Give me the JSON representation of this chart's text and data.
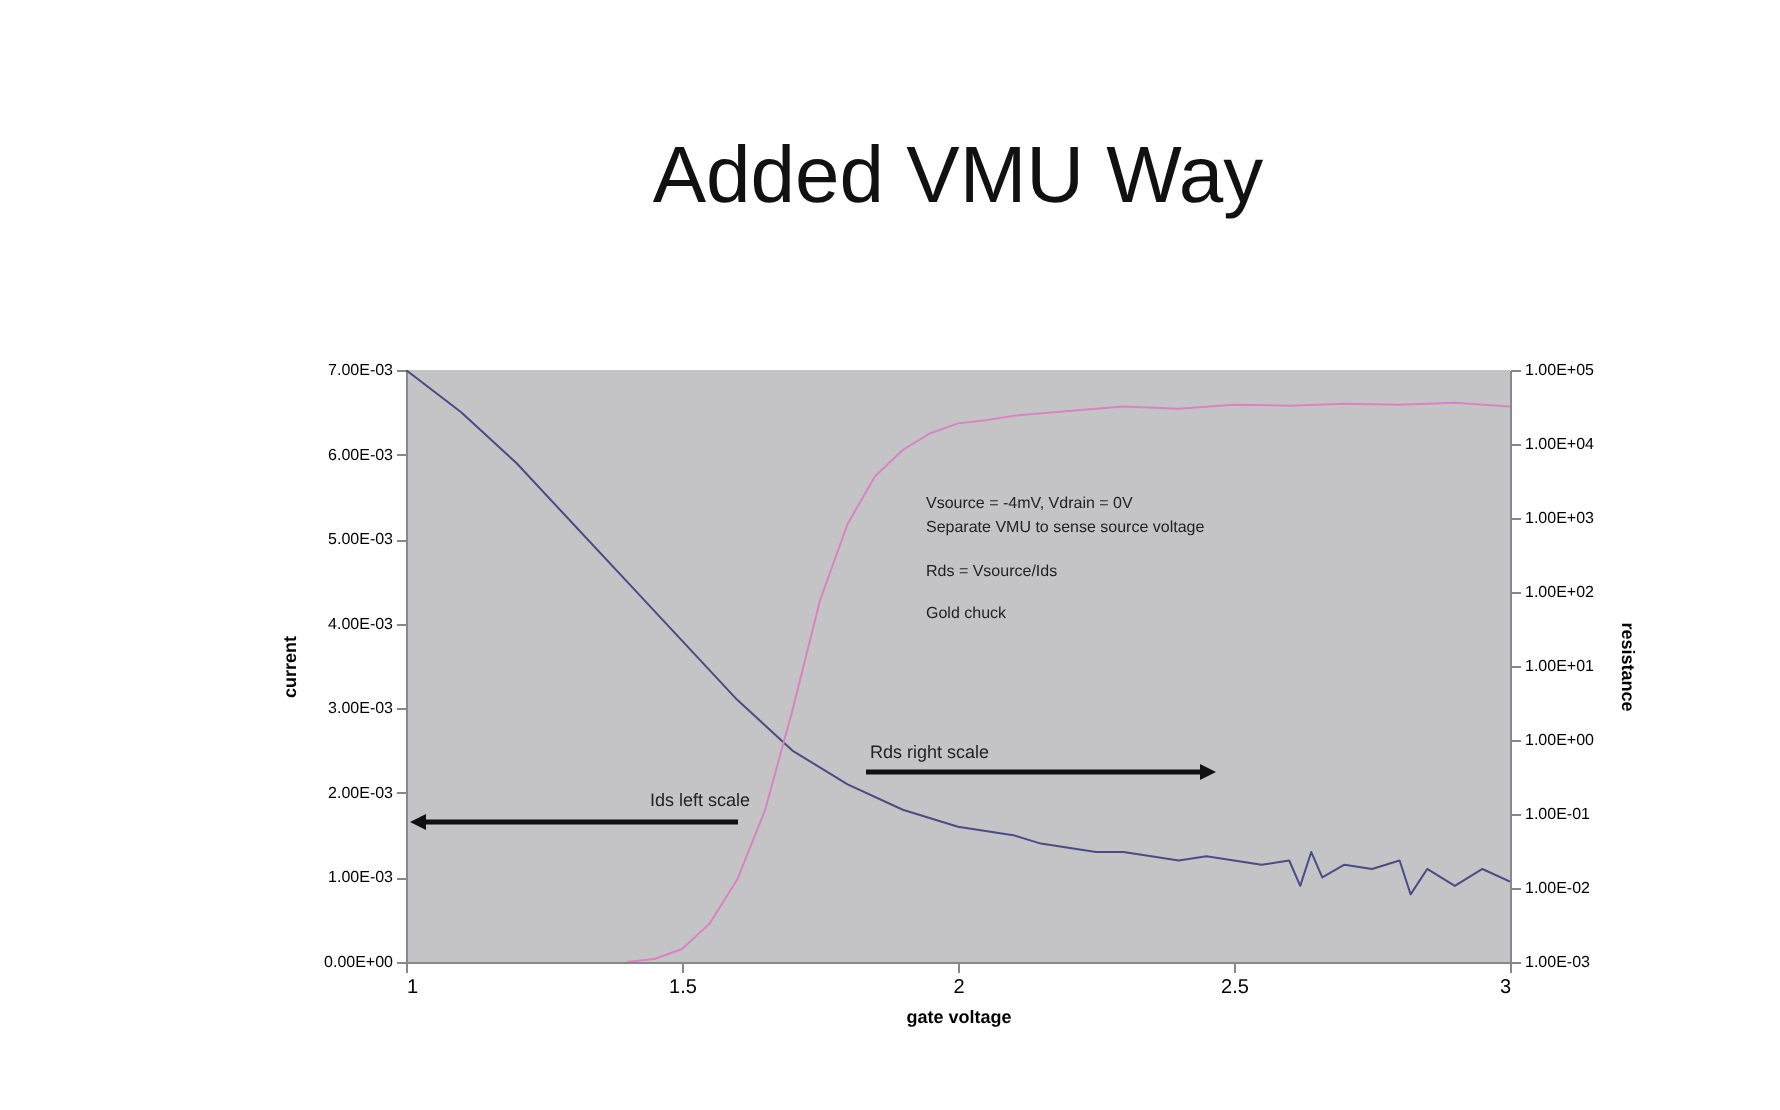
{
  "chart_data": {
    "type": "line",
    "title": "Added VMU Way",
    "xlabel": "gate voltage",
    "ylabel": "current",
    "y2label": "resistance",
    "xlim": [
      1,
      3
    ],
    "xticks": [
      1,
      1.5,
      2,
      2.5,
      3
    ],
    "ylim": [
      0,
      0.007
    ],
    "yticks": [
      {
        "value": 0,
        "label": "0.00E+00"
      },
      {
        "value": 0.001,
        "label": "1.00E-03"
      },
      {
        "value": 0.002,
        "label": "2.00E-03"
      },
      {
        "value": 0.003,
        "label": "3.00E-03"
      },
      {
        "value": 0.004,
        "label": "4.00E-03"
      },
      {
        "value": 0.005,
        "label": "5.00E-03"
      },
      {
        "value": 0.006,
        "label": "6.00E-03"
      },
      {
        "value": 0.007,
        "label": "7.00E-03"
      }
    ],
    "y2lim": [
      0.001,
      100000
    ],
    "y2ticks": [
      {
        "value": 0.001,
        "label": "1.00E-03"
      },
      {
        "value": 0.01,
        "label": "1.00E-02"
      },
      {
        "value": 0.1,
        "label": "1.00E-01"
      },
      {
        "value": 1,
        "label": "1.00E+00"
      },
      {
        "value": 10,
        "label": "1.00E+01"
      },
      {
        "value": 100,
        "label": "1.00E+02"
      },
      {
        "value": 1000,
        "label": "1.00E+03"
      },
      {
        "value": 10000,
        "label": "1.00E+04"
      },
      {
        "value": 100000,
        "label": "1.00E+05"
      }
    ],
    "log": "y2",
    "series": [
      {
        "color": "#4b4b86",
        "x": [
          1,
          1.1,
          1.2,
          1.3,
          1.4,
          1.5,
          1.6,
          1.7,
          1.8,
          1.9,
          2,
          2.05,
          2.1,
          2.15,
          2.2,
          2.25,
          2.3,
          2.35,
          2.4,
          2.45,
          2.5,
          2.55,
          2.6,
          2.62,
          2.64,
          2.66,
          2.7,
          2.75,
          2.8,
          2.82,
          2.85,
          2.9,
          2.95,
          3
        ],
        "values": [
          0.007,
          0.0065,
          0.0059,
          0.0052,
          0.0045,
          0.0038,
          0.0031,
          0.0025,
          0.0021,
          0.0018,
          0.0016,
          0.00155,
          0.0015,
          0.0014,
          0.00135,
          0.0013,
          0.0013,
          0.00125,
          0.0012,
          0.00125,
          0.0012,
          0.00115,
          0.0012,
          0.0009,
          0.0013,
          0.001,
          0.00115,
          0.0011,
          0.0012,
          0.0008,
          0.0011,
          0.0009,
          0.0011,
          0.00095
        ]
      },
      {
        "color": "#d982c4",
        "axis": "y2",
        "x": [
          1.4,
          1.45,
          1.5,
          1.55,
          1.6,
          1.65,
          1.7,
          1.75,
          1.8,
          1.85,
          1.9,
          1.95,
          2,
          2.05,
          2.1,
          2.2,
          2.3,
          2.4,
          2.5,
          2.6,
          2.7,
          2.8,
          2.9,
          3
        ],
        "values": [
          0.001,
          0.0011,
          0.0015,
          0.0033,
          0.013,
          0.11,
          2.5,
          77,
          830,
          3700,
          8300,
          14000,
          19000,
          21000,
          24000,
          28000,
          32000,
          30000,
          34000,
          33000,
          35000,
          34000,
          36000,
          32000
        ]
      }
    ],
    "annotations": [
      "Vsource = -4mV, Vdrain = 0V",
      "Separate VMU to sense source voltage",
      "Rds = Vsource/Ids",
      "Gold chuck",
      "Ids left scale",
      "Rds right scale"
    ]
  }
}
